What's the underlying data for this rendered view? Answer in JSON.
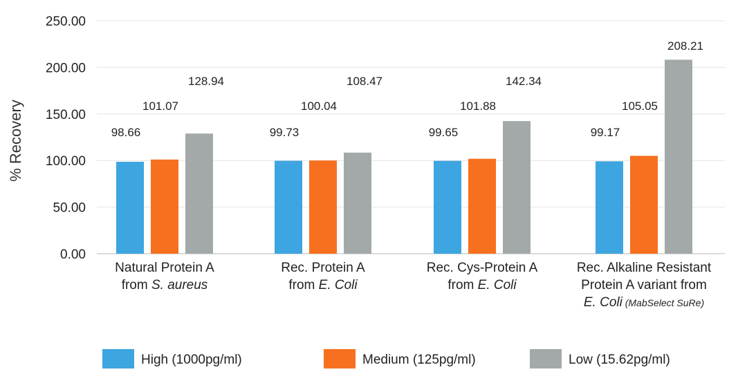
{
  "chart_data": {
    "type": "bar",
    "ylabel": "% Recovery",
    "ylim": [
      0,
      250
    ],
    "yticks": [
      "0.00",
      "50.00",
      "100.00",
      "150.00",
      "200.00",
      "250.00"
    ],
    "grid": true,
    "legend_position": "bottom",
    "categories": [
      {
        "lines": [
          [
            {
              "t": "Natural Protein A"
            }
          ],
          [
            {
              "t": "from "
            },
            {
              "t": "S. aureus",
              "s": "it"
            }
          ]
        ]
      },
      {
        "lines": [
          [
            {
              "t": "Rec. Protein A"
            }
          ],
          [
            {
              "t": "from "
            },
            {
              "t": "E. Coli",
              "s": "it"
            }
          ]
        ]
      },
      {
        "lines": [
          [
            {
              "t": "Rec. Cys-Protein A"
            }
          ],
          [
            {
              "t": "from "
            },
            {
              "t": "E. Coli",
              "s": "it"
            }
          ]
        ]
      },
      {
        "lines": [
          [
            {
              "t": "Rec. Alkaline Resistant"
            }
          ],
          [
            {
              "t": "Protein A variant from"
            }
          ],
          [
            {
              "t": "E. Coli",
              "s": "it"
            },
            {
              "t": " (MabSelect SuRe)",
              "s": "small"
            }
          ]
        ]
      }
    ],
    "series": [
      {
        "name": "High (1000pg/ml)",
        "color": "#3da5e0",
        "values": [
          98.66,
          99.73,
          99.65,
          99.17
        ],
        "labels": [
          "98.66",
          "99.73",
          "99.65",
          "99.17"
        ]
      },
      {
        "name": "Medium (125pg/ml)",
        "color": "#f7701f",
        "values": [
          101.07,
          100.04,
          101.88,
          105.05
        ],
        "labels": [
          "101.07",
          "100.04",
          "101.88",
          "105.05"
        ]
      },
      {
        "name": "Low (15.62pg/ml)",
        "color": "#a3a9a9",
        "values": [
          128.94,
          108.47,
          142.34,
          208.21
        ],
        "labels": [
          "128.94",
          "108.47",
          "142.34",
          "208.21"
        ]
      }
    ]
  }
}
